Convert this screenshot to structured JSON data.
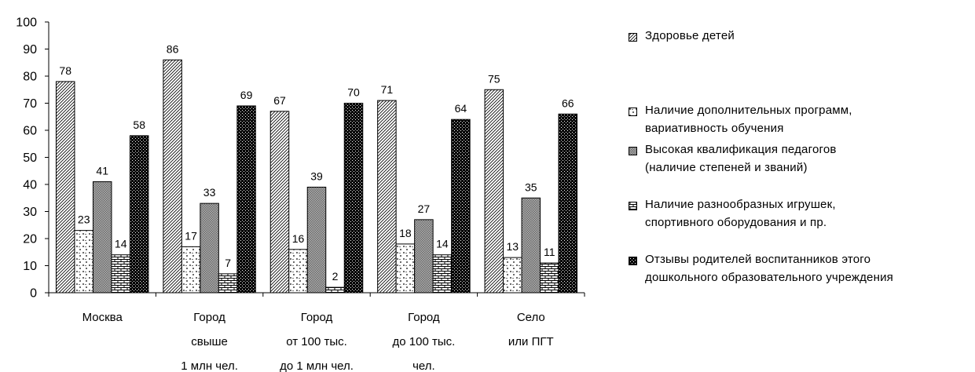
{
  "chart_data": {
    "type": "bar",
    "categories": [
      "Москва",
      "Город\nсвыше\n1 млн чел.",
      "Город\nот 100 тыс.\nдо 1 млн чел.",
      "Город\nдо 100 тыс.\nчел.",
      "Село\nили ПГТ"
    ],
    "series": [
      {
        "name": "Здоровье детей",
        "values": [
          78,
          86,
          67,
          71,
          75
        ],
        "pattern": "diagonal-hatch"
      },
      {
        "name": "Наличие дополнительных программ,\nвариативность обучения",
        "values": [
          23,
          17,
          16,
          18,
          13
        ],
        "pattern": "dots"
      },
      {
        "name": "Высокая квалификация педагогов\n(наличие степеней и званий)",
        "values": [
          41,
          33,
          39,
          27,
          35
        ],
        "pattern": "crosshatch"
      },
      {
        "name": "Наличие разнообразных игрушек,\nспортивного оборудования и пр.",
        "values": [
          14,
          7,
          2,
          14,
          11
        ],
        "pattern": "brick"
      },
      {
        "name": "Отзывы родителей воспитанников этого\nдошкольного образовательного учреждения",
        "values": [
          58,
          69,
          70,
          64,
          66
        ],
        "pattern": "dark-checker"
      }
    ],
    "title": "",
    "xlabel": "",
    "ylabel": "",
    "ylim": [
      0,
      100
    ],
    "yticks": [
      0,
      10,
      20,
      30,
      40,
      50,
      60,
      70,
      80,
      90,
      100
    ],
    "grid": false,
    "legend_position": "right"
  }
}
